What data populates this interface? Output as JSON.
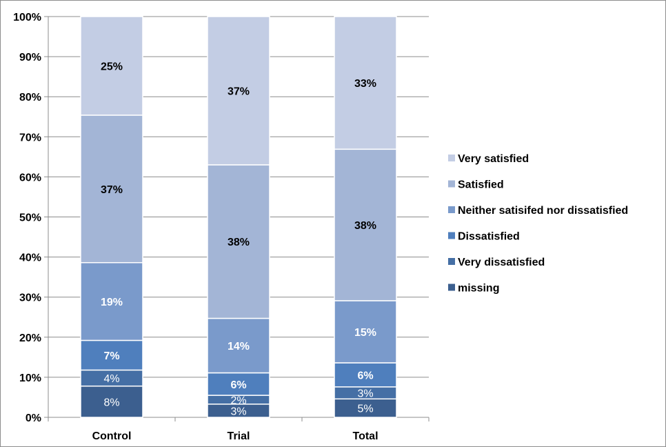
{
  "chart_data": {
    "type": "bar",
    "stacked": true,
    "categories": [
      "Control",
      "Trial",
      "Total"
    ],
    "series": [
      {
        "name": "missing",
        "color": "#3c5f8f",
        "values": [
          8,
          3,
          5
        ],
        "labels": [
          "8%",
          "3%",
          "5%"
        ],
        "label_color": "#ffffff",
        "label_bold": false
      },
      {
        "name": "Very dissatisfied",
        "color": "#456fa5",
        "values": [
          4,
          2,
          3
        ],
        "labels": [
          "4%",
          "2%",
          "3%"
        ],
        "label_color": "#ffffff",
        "label_bold": false
      },
      {
        "name": "Dissatisfied",
        "color": "#4f7fbd",
        "values": [
          7,
          6,
          6
        ],
        "labels": [
          "7%",
          "6%",
          "6%"
        ],
        "label_color": "#ffffff",
        "label_bold": true
      },
      {
        "name": "Neither satisifed nor dissatisfied",
        "color": "#7a9acb",
        "values": [
          19,
          14,
          15
        ],
        "labels": [
          "19%",
          "14%",
          "15%"
        ],
        "label_color": "#ffffff",
        "label_bold": true
      },
      {
        "name": "Satisfied",
        "color": "#a3b5d6",
        "values": [
          37,
          38,
          38
        ],
        "labels": [
          "37%",
          "38%",
          "38%"
        ],
        "label_color": "#000000",
        "label_bold": true
      },
      {
        "name": "Very satisfied",
        "color": "#c3cde4",
        "values": [
          25,
          37,
          33
        ],
        "labels": [
          "25%",
          "37%",
          "33%"
        ],
        "label_color": "#000000",
        "label_bold": true
      }
    ],
    "stack_boundaries": [
      [
        7.8,
        11.8,
        19.2,
        38.6,
        75.4,
        100
      ],
      [
        3.3,
        5.5,
        11.1,
        24.7,
        63.0,
        100
      ],
      [
        4.6,
        7.6,
        13.6,
        29.1,
        66.9,
        100
      ]
    ],
    "yticks": [
      "0%",
      "10%",
      "20%",
      "30%",
      "40%",
      "50%",
      "60%",
      "70%",
      "80%",
      "90%",
      "100%"
    ],
    "ylim": [
      0,
      100
    ],
    "grid": true,
    "legend_position": "right"
  }
}
